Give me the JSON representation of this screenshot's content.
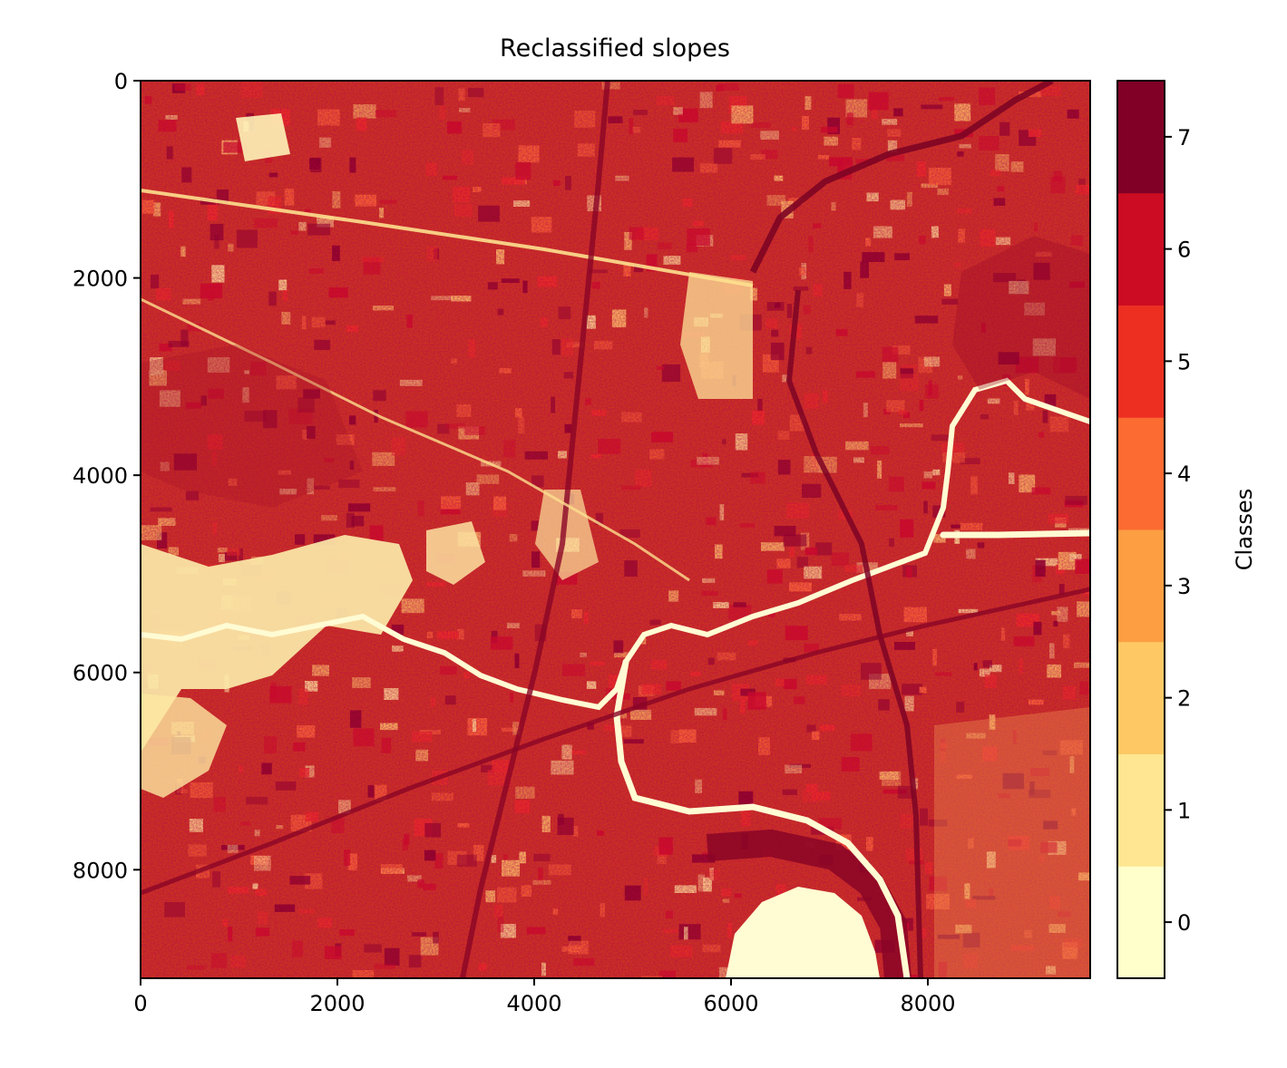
{
  "chart_data": {
    "type": "heatmap",
    "title": "Reclassified slopes",
    "xlabel": "",
    "ylabel": "",
    "xlim": [
      0,
      9650
    ],
    "ylim": [
      9100,
      0
    ],
    "xticks": [
      "0",
      "2000",
      "4000",
      "6000",
      "8000"
    ],
    "xtick_values": [
      0,
      2000,
      4000,
      6000,
      8000
    ],
    "yticks": [
      "0",
      "2000",
      "4000",
      "6000",
      "8000"
    ],
    "ytick_values": [
      0,
      2000,
      4000,
      6000,
      8000
    ],
    "colorbar": {
      "label": "Classes",
      "ticks": [
        "0",
        "1",
        "2",
        "3",
        "4",
        "5",
        "6",
        "7"
      ],
      "classes": [
        0,
        1,
        2,
        3,
        4,
        5,
        6,
        7
      ],
      "colors": [
        "#ffffcc",
        "#ffeda0",
        "#fed976",
        "#feb24c",
        "#fd8d3c",
        "#fc4e2a",
        "#e31a1c",
        "#bd0026",
        "#800026"
      ],
      "class_colors": [
        "#ffffcc",
        "#fee692",
        "#fec965",
        "#fd9e43",
        "#fc6b32",
        "#ed2f22",
        "#cc0c22",
        "#800026"
      ]
    },
    "grid": false,
    "cmap": "YlOrRd"
  }
}
